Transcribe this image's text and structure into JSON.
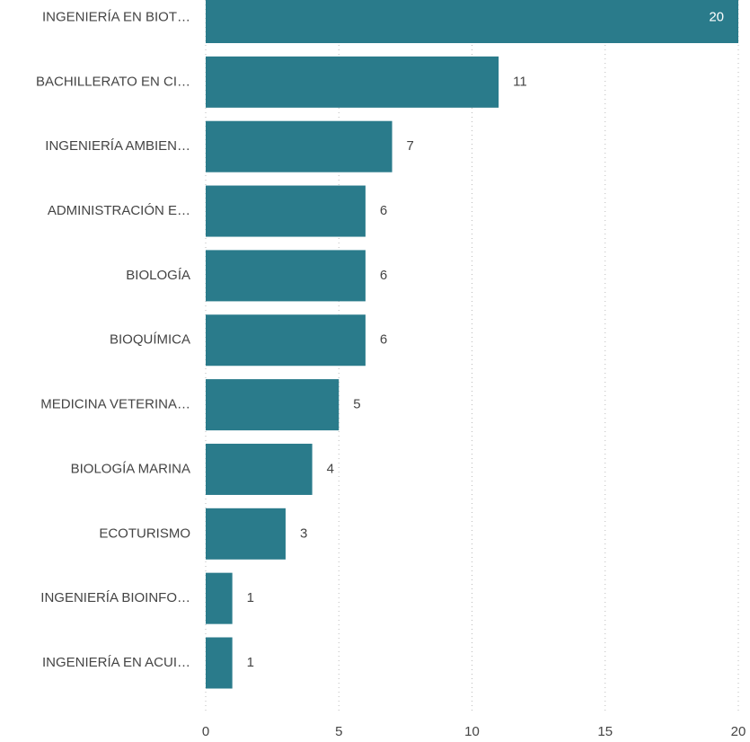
{
  "chart_data": {
    "type": "bar",
    "orientation": "horizontal",
    "categories": [
      "INGENIERÍA EN BIOT…",
      "BACHILLERATO EN CI…",
      "INGENIERÍA AMBIEN…",
      "ADMINISTRACIÓN E…",
      "BIOLOGÍA",
      "BIOQUÍMICA",
      "MEDICINA VETERINA…",
      "BIOLOGÍA MARINA",
      "ECOTURISMO",
      "INGENIERÍA BIOINFO…",
      "INGENIERÍA EN ACUI…"
    ],
    "values": [
      20,
      11,
      7,
      6,
      6,
      6,
      5,
      4,
      3,
      1,
      1
    ],
    "color": "#2a7b8b",
    "xlim": [
      0,
      20
    ],
    "xticks": [
      0,
      5,
      10,
      15,
      20
    ],
    "grid": true
  }
}
